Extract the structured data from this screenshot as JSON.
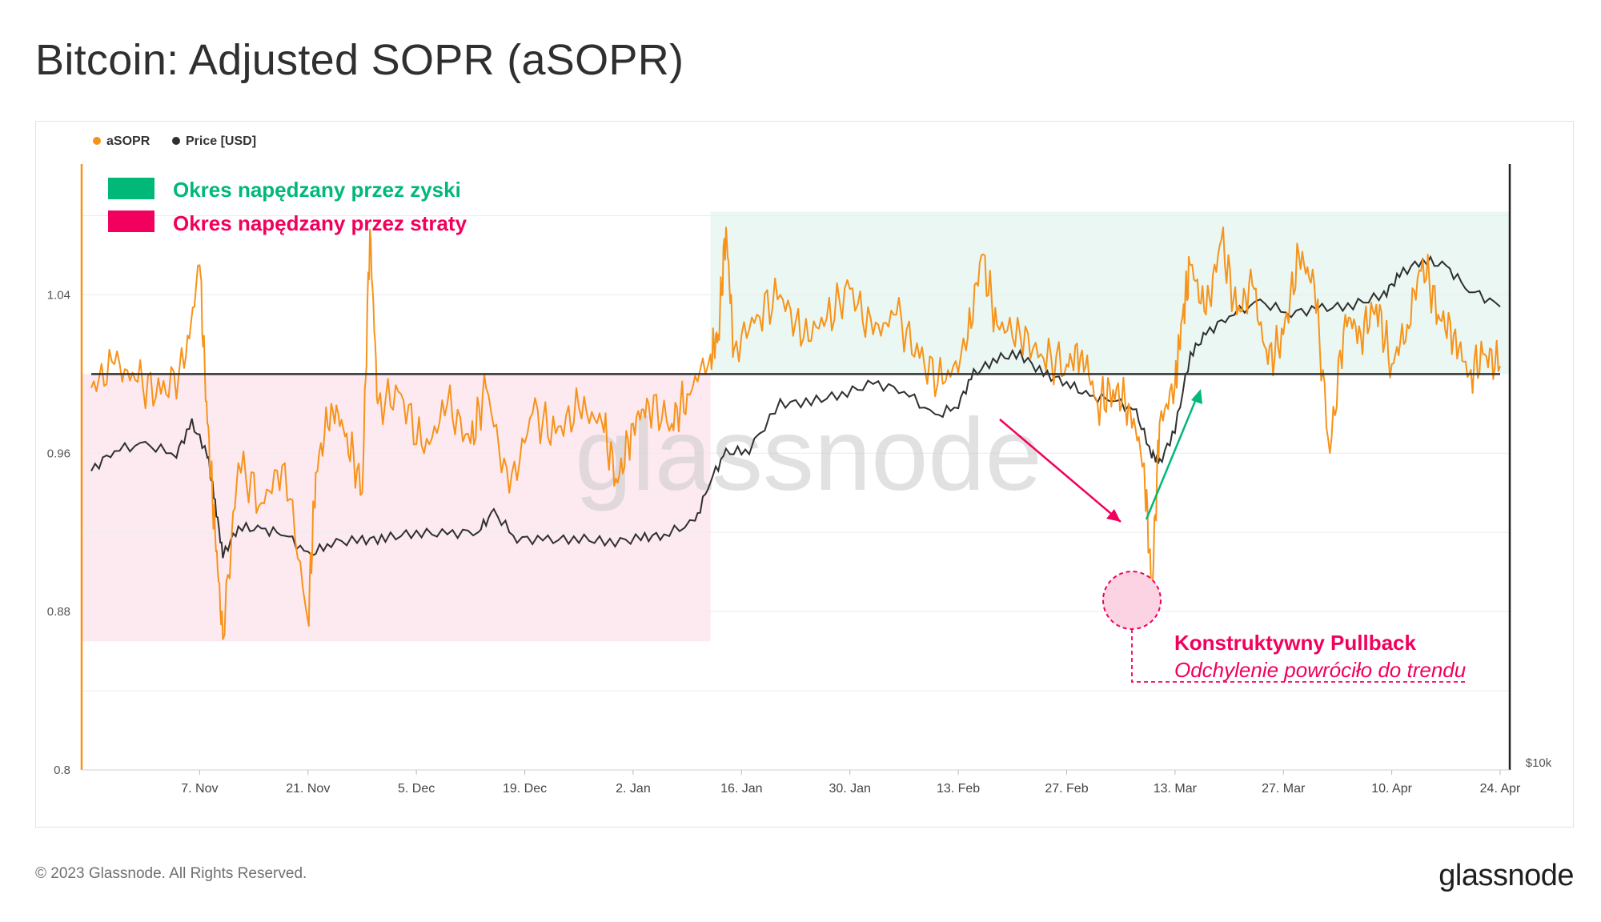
{
  "page": {
    "title": "Bitcoin: Adjusted SOPR (aSOPR)",
    "copyright": "© 2023 Glassnode. All Rights Reserved.",
    "brand": "glassnode"
  },
  "colors": {
    "asopr": "#f7931a",
    "price": "#2f2f2f",
    "profit": "#00b877",
    "loss": "#f2005d",
    "profit_fill": "#eaf7f2",
    "loss_fill": "#fdeaf1"
  },
  "legend": {
    "asopr": "aSOPR",
    "price": "Price [USD]"
  },
  "annotations": {
    "profit_regime": "Okres napędzany przez zyski",
    "loss_regime": "Okres napędzany przez straty",
    "pullback_title": "Konstruktywny Pullback",
    "pullback_subtitle": "Odchylenie powróciło do trendu",
    "watermark": "glassnode"
  },
  "chart_data": {
    "type": "line",
    "x_ticks": [
      "7. Nov",
      "21. Nov",
      "5. Dec",
      "19. Dec",
      "2. Jan",
      "16. Jan",
      "30. Jan",
      "13. Feb",
      "27. Feb",
      "13. Mar",
      "27. Mar",
      "10. Apr",
      "24. Apr"
    ],
    "x_range": [
      "2022-10-24",
      "2023-04-24"
    ],
    "y_left": {
      "label": "aSOPR",
      "ticks": [
        "0.8",
        "0.88",
        "0.96",
        "1.04"
      ],
      "range": [
        0.8,
        1.1
      ]
    },
    "y_right": {
      "label": "Price [USD]",
      "ticks": [
        "$10k"
      ]
    },
    "reference_line": 1.0,
    "regions": [
      {
        "label": "Okres napędzany przez straty",
        "x_start": "2022-10-24",
        "x_end": "2023-01-12",
        "y_range": [
          0.865,
          1.0
        ]
      },
      {
        "label": "Okres napędzany przez zyski",
        "x_start": "2023-01-12",
        "x_end": "2023-04-24",
        "y_range": [
          1.0,
          1.082
        ]
      }
    ],
    "series": [
      {
        "name": "aSOPR",
        "points": [
          [
            "2022-10-24",
            0.993
          ],
          [
            "2022-10-27",
            1.005
          ],
          [
            "2022-10-30",
            0.996
          ],
          [
            "2022-11-02",
            0.99
          ],
          [
            "2022-11-05",
            1.003
          ],
          [
            "2022-11-07",
            1.055
          ],
          [
            "2022-11-08",
            0.975
          ],
          [
            "2022-11-09",
            0.92
          ],
          [
            "2022-11-10",
            0.866
          ],
          [
            "2022-11-12",
            0.955
          ],
          [
            "2022-11-15",
            0.935
          ],
          [
            "2022-11-18",
            0.955
          ],
          [
            "2022-11-21",
            0.875
          ],
          [
            "2022-11-22",
            0.95
          ],
          [
            "2022-11-24",
            0.985
          ],
          [
            "2022-11-26",
            0.97
          ],
          [
            "2022-11-28",
            0.94
          ],
          [
            "2022-11-29",
            1.073
          ],
          [
            "2022-11-30",
            0.985
          ],
          [
            "2022-12-03",
            0.99
          ],
          [
            "2022-12-06",
            0.96
          ],
          [
            "2022-12-09",
            0.985
          ],
          [
            "2022-12-12",
            0.965
          ],
          [
            "2022-12-14",
            0.993
          ],
          [
            "2022-12-17",
            0.94
          ],
          [
            "2022-12-20",
            0.98
          ],
          [
            "2022-12-23",
            0.97
          ],
          [
            "2022-12-26",
            0.983
          ],
          [
            "2022-12-29",
            0.975
          ],
          [
            "2022-12-31",
            0.945
          ],
          [
            "2023-01-02",
            0.975
          ],
          [
            "2023-01-04",
            0.985
          ],
          [
            "2023-01-07",
            0.975
          ],
          [
            "2023-01-09",
            0.99
          ],
          [
            "2023-01-12",
            1.01
          ],
          [
            "2023-01-13",
            1.02
          ],
          [
            "2023-01-14",
            1.074
          ],
          [
            "2023-01-15",
            1.012
          ],
          [
            "2023-01-18",
            1.03
          ],
          [
            "2023-01-21",
            1.04
          ],
          [
            "2023-01-24",
            1.018
          ],
          [
            "2023-01-27",
            1.028
          ],
          [
            "2023-01-30",
            1.043
          ],
          [
            "2023-02-02",
            1.02
          ],
          [
            "2023-02-05",
            1.03
          ],
          [
            "2023-02-08",
            1.008
          ],
          [
            "2023-02-11",
            0.995
          ],
          [
            "2023-02-14",
            1.012
          ],
          [
            "2023-02-16",
            1.06
          ],
          [
            "2023-02-18",
            1.025
          ],
          [
            "2023-02-21",
            1.02
          ],
          [
            "2023-02-24",
            1.008
          ],
          [
            "2023-02-27",
            1.005
          ],
          [
            "2023-03-01",
            1.012
          ],
          [
            "2023-03-03",
            0.985
          ],
          [
            "2023-03-05",
            0.992
          ],
          [
            "2023-03-07",
            0.985
          ],
          [
            "2023-03-09",
            0.955
          ],
          [
            "2023-03-10",
            0.89
          ],
          [
            "2023-03-11",
            0.975
          ],
          [
            "2023-03-13",
            0.995
          ],
          [
            "2023-03-14",
            1.03
          ],
          [
            "2023-03-15",
            1.055
          ],
          [
            "2023-03-17",
            1.03
          ],
          [
            "2023-03-19",
            1.068
          ],
          [
            "2023-03-21",
            1.03
          ],
          [
            "2023-03-23",
            1.045
          ],
          [
            "2023-03-25",
            1.005
          ],
          [
            "2023-03-27",
            1.02
          ],
          [
            "2023-03-29",
            1.06
          ],
          [
            "2023-03-31",
            1.045
          ],
          [
            "2023-04-02",
            0.96
          ],
          [
            "2023-04-04",
            1.03
          ],
          [
            "2023-04-06",
            1.02
          ],
          [
            "2023-04-08",
            1.035
          ],
          [
            "2023-04-10",
            1.005
          ],
          [
            "2023-04-12",
            1.025
          ],
          [
            "2023-04-14",
            1.058
          ],
          [
            "2023-04-16",
            1.03
          ],
          [
            "2023-04-18",
            1.02
          ],
          [
            "2023-04-20",
            1.0
          ],
          [
            "2023-04-22",
            1.01
          ],
          [
            "2023-04-24",
            1.004
          ]
        ]
      },
      {
        "name": "Price [USD]",
        "points": [
          [
            "2022-10-24",
            0.951
          ],
          [
            "2022-10-27",
            0.962
          ],
          [
            "2022-10-31",
            0.964
          ],
          [
            "2022-11-04",
            0.96
          ],
          [
            "2022-11-06",
            0.975
          ],
          [
            "2022-11-08",
            0.96
          ],
          [
            "2022-11-09",
            0.935
          ],
          [
            "2022-11-10",
            0.908
          ],
          [
            "2022-11-12",
            0.923
          ],
          [
            "2022-11-15",
            0.921
          ],
          [
            "2022-11-18",
            0.92
          ],
          [
            "2022-11-21",
            0.908
          ],
          [
            "2022-11-24",
            0.915
          ],
          [
            "2022-11-28",
            0.916
          ],
          [
            "2022-12-01",
            0.917
          ],
          [
            "2022-12-05",
            0.92
          ],
          [
            "2022-12-09",
            0.919
          ],
          [
            "2022-12-13",
            0.921
          ],
          [
            "2022-12-15",
            0.93
          ],
          [
            "2022-12-18",
            0.917
          ],
          [
            "2022-12-22",
            0.916
          ],
          [
            "2022-12-26",
            0.917
          ],
          [
            "2022-12-30",
            0.915
          ],
          [
            "2023-01-03",
            0.917
          ],
          [
            "2023-01-06",
            0.919
          ],
          [
            "2023-01-10",
            0.925
          ],
          [
            "2023-01-12",
            0.947
          ],
          [
            "2023-01-14",
            0.96
          ],
          [
            "2023-01-17",
            0.962
          ],
          [
            "2023-01-21",
            0.985
          ],
          [
            "2023-01-25",
            0.986
          ],
          [
            "2023-01-29",
            0.99
          ],
          [
            "2023-02-02",
            0.995
          ],
          [
            "2023-02-06",
            0.992
          ],
          [
            "2023-02-10",
            0.978
          ],
          [
            "2023-02-13",
            0.985
          ],
          [
            "2023-02-15",
            1.0
          ],
          [
            "2023-02-18",
            1.008
          ],
          [
            "2023-02-21",
            1.01
          ],
          [
            "2023-02-24",
            1.0
          ],
          [
            "2023-02-27",
            0.996
          ],
          [
            "2023-03-02",
            0.988
          ],
          [
            "2023-03-05",
            0.988
          ],
          [
            "2023-03-08",
            0.98
          ],
          [
            "2023-03-10",
            0.96
          ],
          [
            "2023-03-11",
            0.955
          ],
          [
            "2023-03-13",
            0.972
          ],
          [
            "2023-03-15",
            1.01
          ],
          [
            "2023-03-17",
            1.02
          ],
          [
            "2023-03-20",
            1.03
          ],
          [
            "2023-03-24",
            1.036
          ],
          [
            "2023-03-28",
            1.031
          ],
          [
            "2023-04-01",
            1.033
          ],
          [
            "2023-04-05",
            1.035
          ],
          [
            "2023-04-09",
            1.04
          ],
          [
            "2023-04-11",
            1.05
          ],
          [
            "2023-04-14",
            1.058
          ],
          [
            "2023-04-17",
            1.054
          ],
          [
            "2023-04-20",
            1.043
          ],
          [
            "2023-04-24",
            1.034
          ]
        ]
      }
    ]
  }
}
